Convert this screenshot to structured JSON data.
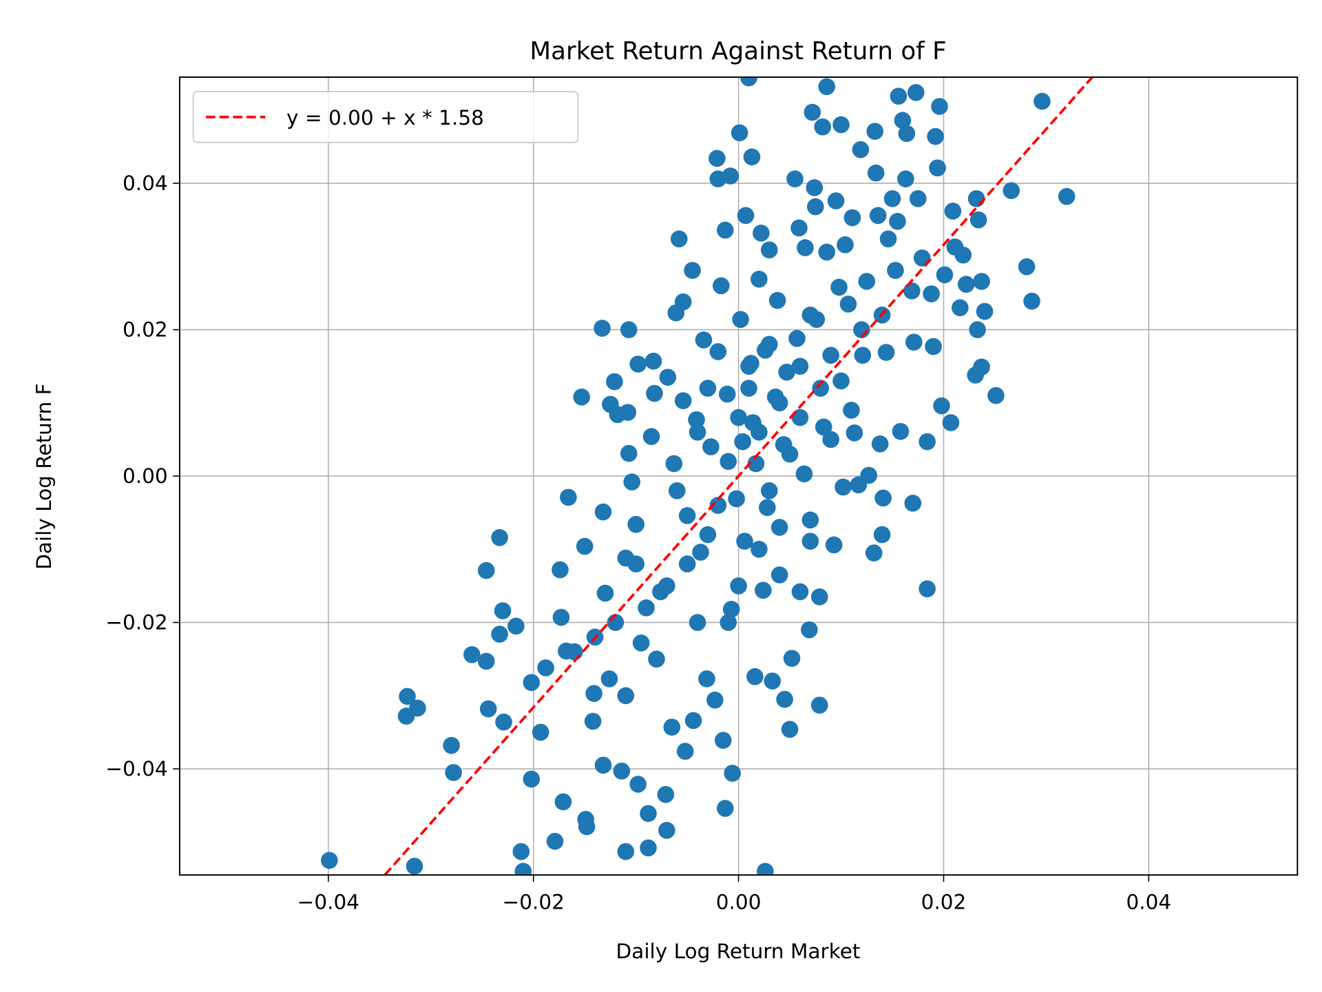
{
  "chart_data": {
    "type": "scatter",
    "title": "Market Return Against Return of F",
    "xlabel": "Daily Log Return Market",
    "ylabel": "Daily Log Return F",
    "xlim": [
      -0.0545,
      0.0545
    ],
    "ylim": [
      -0.0545,
      0.0545
    ],
    "xticks": [
      -0.04,
      -0.02,
      0.0,
      0.02,
      0.04
    ],
    "xtick_labels": [
      "−0.04",
      "−0.02",
      "0.00",
      "0.02",
      "0.04"
    ],
    "yticks": [
      -0.04,
      -0.02,
      0.0,
      0.02,
      0.04
    ],
    "ytick_labels": [
      "−0.04",
      "−0.02",
      "0.00",
      "0.02",
      "0.04"
    ],
    "grid": true,
    "legend_position": "top-left",
    "point_color": "#1f77b4",
    "fit_line": {
      "label": "y = 0.00 + x * 1.58",
      "intercept": 0.0,
      "slope": 1.58,
      "color": "#ff0000",
      "style": "dashed"
    },
    "points": [
      [
        -0.0399,
        -0.0525
      ],
      [
        -0.0316,
        -0.0533
      ],
      [
        -0.0323,
        -0.0301
      ],
      [
        -0.0324,
        -0.0328
      ],
      [
        -0.0313,
        -0.0317
      ],
      [
        -0.028,
        -0.0368
      ],
      [
        -0.0278,
        -0.0405
      ],
      [
        -0.026,
        -0.0244
      ],
      [
        -0.0246,
        -0.0253
      ],
      [
        -0.0246,
        -0.0129
      ],
      [
        -0.0233,
        -0.0084
      ],
      [
        -0.023,
        -0.0184
      ],
      [
        -0.0233,
        -0.0216
      ],
      [
        -0.0244,
        -0.0318
      ],
      [
        -0.0229,
        -0.0336
      ],
      [
        -0.0217,
        -0.0205
      ],
      [
        -0.0212,
        -0.0513
      ],
      [
        -0.021,
        -0.054
      ],
      [
        -0.0202,
        -0.0414
      ],
      [
        -0.0202,
        -0.0282
      ],
      [
        -0.0193,
        -0.035
      ],
      [
        -0.0188,
        -0.0262
      ],
      [
        -0.0179,
        -0.0499
      ],
      [
        -0.0174,
        -0.0128
      ],
      [
        -0.0173,
        -0.0193
      ],
      [
        -0.0171,
        -0.0445
      ],
      [
        -0.0166,
        -0.0029
      ],
      [
        -0.0168,
        -0.0239
      ],
      [
        -0.0153,
        0.0108
      ],
      [
        -0.015,
        -0.0096
      ],
      [
        -0.0149,
        -0.0469
      ],
      [
        -0.0148,
        -0.0479
      ],
      [
        -0.0142,
        -0.0335
      ],
      [
        -0.0141,
        -0.0297
      ],
      [
        -0.0133,
        0.0202
      ],
      [
        -0.0132,
        -0.0049
      ],
      [
        -0.0132,
        -0.0395
      ],
      [
        -0.0126,
        -0.0277
      ],
      [
        -0.0125,
        0.0098
      ],
      [
        -0.0121,
        0.0129
      ],
      [
        -0.0118,
        0.0084
      ],
      [
        -0.0114,
        -0.0403
      ],
      [
        -0.011,
        -0.0513
      ],
      [
        -0.0107,
        0.02
      ],
      [
        -0.0108,
        0.0087
      ],
      [
        -0.0107,
        0.0031
      ],
      [
        -0.011,
        -0.0112
      ],
      [
        -0.0104,
        -0.0008
      ],
      [
        -0.01,
        -0.0066
      ],
      [
        -0.0098,
        0.0153
      ],
      [
        -0.0098,
        -0.0421
      ],
      [
        -0.0095,
        -0.0228
      ],
      [
        -0.0088,
        -0.0461
      ],
      [
        -0.0088,
        -0.0508
      ],
      [
        -0.0085,
        0.0054
      ],
      [
        -0.0083,
        0.0157
      ],
      [
        -0.0082,
        0.0113
      ],
      [
        -0.0076,
        -0.0158
      ],
      [
        -0.0071,
        -0.0435
      ],
      [
        -0.007,
        -0.0484
      ],
      [
        -0.0069,
        0.0135
      ],
      [
        -0.0065,
        -0.0343
      ],
      [
        -0.0063,
        0.0017
      ],
      [
        -0.0061,
        0.0223
      ],
      [
        -0.0058,
        0.0324
      ],
      [
        -0.0054,
        0.0238
      ],
      [
        -0.0052,
        -0.0376
      ],
      [
        -0.0054,
        0.0103
      ],
      [
        -0.005,
        -0.0054
      ],
      [
        -0.0045,
        0.0281
      ],
      [
        -0.0044,
        -0.0334
      ],
      [
        -0.0041,
        0.0077
      ],
      [
        -0.0037,
        -0.0104
      ],
      [
        -0.0034,
        0.0186
      ],
      [
        -0.0031,
        -0.0277
      ],
      [
        -0.0027,
        0.004
      ],
      [
        -0.0023,
        -0.0306
      ],
      [
        -0.0021,
        0.0434
      ],
      [
        -0.002,
        0.0406
      ],
      [
        -0.0017,
        0.026
      ],
      [
        -0.0013,
        0.0336
      ],
      [
        -0.0013,
        -0.0454
      ],
      [
        -0.0015,
        -0.0361
      ],
      [
        -0.0011,
        0.0112
      ],
      [
        -0.0008,
        0.041
      ],
      [
        -0.0006,
        -0.0406
      ],
      [
        -0.0007,
        -0.0182
      ],
      [
        -0.0002,
        -0.0031
      ],
      [
        0.0001,
        0.0469
      ],
      [
        0.0002,
        0.0214
      ],
      [
        0.0004,
        0.0047
      ],
      [
        0.0006,
        -0.0089
      ],
      [
        0.0007,
        0.0356
      ],
      [
        0.001,
        0.0544
      ],
      [
        0.0013,
        0.0436
      ],
      [
        0.0012,
        0.0154
      ],
      [
        0.0014,
        0.0073
      ],
      [
        0.0016,
        -0.0274
      ],
      [
        0.0017,
        0.0017
      ],
      [
        0.002,
        0.0269
      ],
      [
        0.0022,
        0.0332
      ],
      [
        0.0024,
        -0.0156
      ],
      [
        0.0026,
        -0.054
      ],
      [
        0.0026,
        0.0172
      ],
      [
        0.0028,
        -0.0043
      ],
      [
        0.003,
        0.0309
      ],
      [
        0.0033,
        -0.028
      ],
      [
        0.0036,
        0.0108
      ],
      [
        0.0038,
        0.024
      ],
      [
        0.004,
        -0.0135
      ],
      [
        0.0044,
        0.0043
      ],
      [
        0.0045,
        -0.0305
      ],
      [
        0.0047,
        0.0142
      ],
      [
        0.005,
        -0.0346
      ],
      [
        0.0052,
        -0.0249
      ],
      [
        0.0055,
        0.0406
      ],
      [
        0.0057,
        0.0188
      ],
      [
        0.0059,
        0.0339
      ],
      [
        0.006,
        -0.0158
      ],
      [
        0.0064,
        0.0003
      ],
      [
        0.0065,
        0.0312
      ],
      [
        0.0069,
        -0.021
      ],
      [
        0.007,
        -0.0089
      ],
      [
        0.0072,
        0.0497
      ],
      [
        0.0074,
        0.0394
      ],
      [
        0.0075,
        0.0368
      ],
      [
        0.0076,
        0.0214
      ],
      [
        0.0079,
        -0.0165
      ],
      [
        0.0079,
        -0.0313
      ],
      [
        0.0082,
        0.0477
      ],
      [
        0.0083,
        0.0067
      ],
      [
        0.0086,
        0.0532
      ],
      [
        0.0086,
        0.0306
      ],
      [
        0.009,
        0.0165
      ],
      [
        0.0093,
        -0.0094
      ],
      [
        0.0095,
        0.0376
      ],
      [
        0.0098,
        0.0258
      ],
      [
        0.01,
        0.048
      ],
      [
        0.0102,
        -0.0015
      ],
      [
        0.0104,
        0.0316
      ],
      [
        0.0107,
        0.0235
      ],
      [
        0.0111,
        0.0353
      ],
      [
        0.0113,
        0.0059
      ],
      [
        0.0117,
        -0.0012
      ],
      [
        0.0119,
        0.0446
      ],
      [
        0.0121,
        0.0165
      ],
      [
        0.0125,
        0.0266
      ],
      [
        0.0127,
        0.0001
      ],
      [
        0.0132,
        -0.0105
      ],
      [
        0.0133,
        0.0471
      ],
      [
        0.0134,
        0.0414
      ],
      [
        0.0136,
        0.0356
      ],
      [
        0.0138,
        0.0044
      ],
      [
        0.014,
        -0.008
      ],
      [
        0.0141,
        -0.003
      ],
      [
        0.0144,
        0.0169
      ],
      [
        0.0146,
        0.0324
      ],
      [
        0.015,
        0.0379
      ],
      [
        0.0153,
        0.0281
      ],
      [
        0.0155,
        0.0348
      ],
      [
        0.0156,
        0.0519
      ],
      [
        0.0158,
        0.0061
      ],
      [
        0.016,
        0.0486
      ],
      [
        0.0163,
        0.0406
      ],
      [
        0.0164,
        0.0468
      ],
      [
        0.0169,
        0.0253
      ],
      [
        0.017,
        -0.0037
      ],
      [
        0.0171,
        0.0183
      ],
      [
        0.0173,
        0.0524
      ],
      [
        0.0175,
        0.0379
      ],
      [
        0.0179,
        0.0298
      ],
      [
        0.0184,
        0.0047
      ],
      [
        0.0184,
        -0.0154
      ],
      [
        0.0188,
        0.0249
      ],
      [
        0.019,
        0.0177
      ],
      [
        0.0192,
        0.0464
      ],
      [
        0.0194,
        0.0421
      ],
      [
        0.0196,
        0.0505
      ],
      [
        0.0198,
        0.0096
      ],
      [
        0.0201,
        0.0275
      ],
      [
        0.0207,
        0.0073
      ],
      [
        0.0209,
        0.0362
      ],
      [
        0.0211,
        0.0313
      ],
      [
        0.0216,
        0.023
      ],
      [
        0.0219,
        0.0302
      ],
      [
        0.0222,
        0.0262
      ],
      [
        0.0231,
        0.0138
      ],
      [
        0.0232,
        0.0379
      ],
      [
        0.0233,
        0.02
      ],
      [
        0.0234,
        0.035
      ],
      [
        0.0237,
        0.0149
      ],
      [
        0.0237,
        0.0266
      ],
      [
        0.024,
        0.0225
      ],
      [
        0.0251,
        0.011
      ],
      [
        0.0266,
        0.039
      ],
      [
        0.0281,
        0.0286
      ],
      [
        0.0286,
        0.0239
      ],
      [
        0.0296,
        0.0512
      ],
      [
        0.032,
        0.0382
      ],
      [
        -0.005,
        -0.012
      ],
      [
        -0.003,
        -0.008
      ],
      [
        -0.001,
        0.002
      ],
      [
        0.002,
        0.006
      ],
      [
        0.004,
        0.01
      ],
      [
        0.006,
        0.008
      ],
      [
        -0.007,
        -0.015
      ],
      [
        -0.009,
        -0.018
      ],
      [
        -0.012,
        -0.02
      ],
      [
        -0.014,
        -0.022
      ],
      [
        -0.016,
        -0.024
      ],
      [
        0.008,
        0.012
      ],
      [
        0.003,
        -0.002
      ],
      [
        -0.002,
        -0.004
      ],
      [
        0.001,
        0.012
      ],
      [
        0.005,
        0.003
      ],
      [
        -0.004,
        0.006
      ],
      [
        -0.006,
        -0.002
      ],
      [
        0.007,
        -0.006
      ],
      [
        0.009,
        0.005
      ],
      [
        0.01,
        0.013
      ],
      [
        -0.008,
        -0.025
      ],
      [
        -0.011,
        -0.03
      ],
      [
        -0.004,
        -0.02
      ],
      [
        0.0,
        -0.015
      ],
      [
        0.002,
        -0.01
      ],
      [
        0.0,
        0.008
      ],
      [
        0.001,
        0.015
      ],
      [
        0.003,
        0.018
      ],
      [
        -0.001,
        -0.02
      ],
      [
        0.004,
        -0.007
      ],
      [
        0.006,
        0.015
      ],
      [
        -0.003,
        0.012
      ],
      [
        -0.01,
        -0.012
      ],
      [
        -0.013,
        -0.016
      ],
      [
        0.012,
        0.02
      ],
      [
        0.014,
        0.022
      ],
      [
        -0.002,
        0.017
      ],
      [
        0.007,
        0.022
      ],
      [
        0.011,
        0.009
      ]
    ]
  }
}
